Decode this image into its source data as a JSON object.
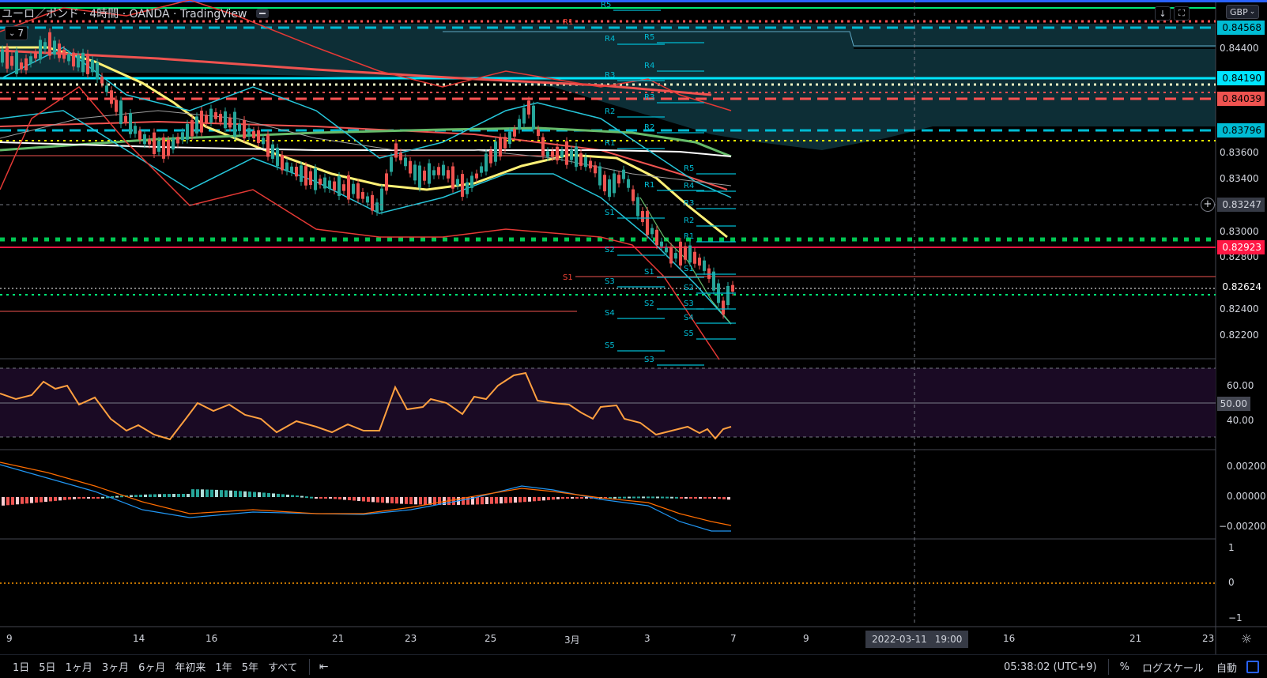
{
  "header": {
    "title": "ユーロ／ポンド · 4時間 · OANDA · TradingView",
    "indicators_collapse_label": "7",
    "currency_label": "GBP"
  },
  "price_scale": {
    "ticks": [
      "0.84400",
      "0.83600",
      "0.83400",
      "0.83000",
      "0.82800",
      "0.82400",
      "0.82200"
    ],
    "tags": [
      {
        "value": "0.84568",
        "bg": "#00bcd4",
        "fg": "#000000"
      },
      {
        "value": "0.84190",
        "bg": "#00e5ff",
        "fg": "#000000"
      },
      {
        "value": "0.84039",
        "bg": "#ef5350",
        "fg": "#000000"
      },
      {
        "value": "0.83796",
        "bg": "#00bcd4",
        "fg": "#000000"
      },
      {
        "value": "0.83247",
        "bg": "#363a45",
        "fg": "#d1d4dc"
      },
      {
        "value": "0.82923",
        "bg": "#ff1744",
        "fg": "#ffffff"
      },
      {
        "value": "0.82624",
        "bg": "#000000",
        "fg": "#ffffff"
      }
    ]
  },
  "rsi_scale": {
    "ticks": [
      "60.00",
      "40.00"
    ],
    "mid_tag": "50.00"
  },
  "macd_scale": {
    "ticks": [
      "0.00200",
      "0.00000",
      "−0.00200"
    ]
  },
  "osc_scale": {
    "ticks": [
      "1",
      "0",
      "−1"
    ]
  },
  "time_axis": {
    "labels": [
      "9",
      "14",
      "16",
      "21",
      "23",
      "25",
      "3月",
      "3",
      "7",
      "9",
      "16",
      "21",
      "23"
    ],
    "crosshair_date": "2022-03-11",
    "crosshair_time": "19:00"
  },
  "pivot_labels": [
    "R5",
    "R4",
    "R3",
    "R2",
    "R1",
    "S1",
    "S2",
    "S3",
    "S4",
    "S5"
  ],
  "bottom_bar": {
    "timeframes": [
      "1日",
      "5日",
      "1ヶ月",
      "3ヶ月",
      "6ヶ月",
      "年初来",
      "1年",
      "5年",
      "すべて"
    ],
    "clock": "05:38:02 (UTC+9)",
    "percent": "%",
    "log_scale": "ログスケール",
    "auto": "自動"
  },
  "colors": {
    "background": "#000000",
    "up_candle": "#26a69a",
    "down_candle": "#ef5350",
    "rsi_line": "#ffa040",
    "pivot_cyan": "#00bcd4",
    "pivot_red": "#f44336"
  }
}
